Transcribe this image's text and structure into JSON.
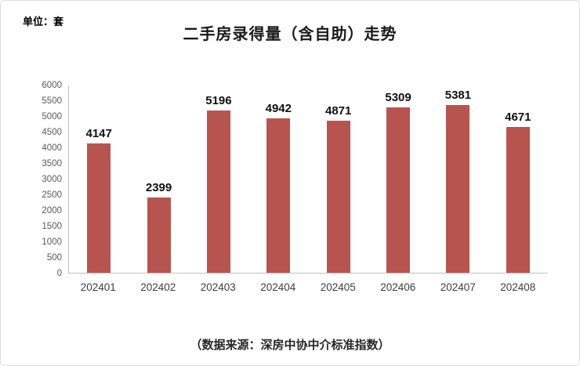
{
  "chart": {
    "unit_label": "单位：套",
    "title": "二手房录得量（含自助）走势",
    "source_caption": "（数据来源：深房中协中介标准指数）"
  },
  "chart_data": {
    "type": "bar",
    "title": "二手房录得量（含自助）走势",
    "categories": [
      "202401",
      "202402",
      "202403",
      "202404",
      "202405",
      "202406",
      "202407",
      "202408"
    ],
    "values": [
      4147,
      2399,
      5196,
      4942,
      4871,
      5309,
      5381,
      4671
    ],
    "xlabel": "",
    "ylabel": "",
    "unit": "套",
    "ylim": [
      0,
      6000
    ],
    "ytick_step": 500,
    "yticks": [
      0,
      500,
      1000,
      1500,
      2000,
      2500,
      3000,
      3500,
      4000,
      4500,
      5000,
      5500,
      6000
    ],
    "bar_color": "#b85450",
    "axis_color": "#c0c0c0",
    "grid": false,
    "legend": "none",
    "data_labels": true
  }
}
